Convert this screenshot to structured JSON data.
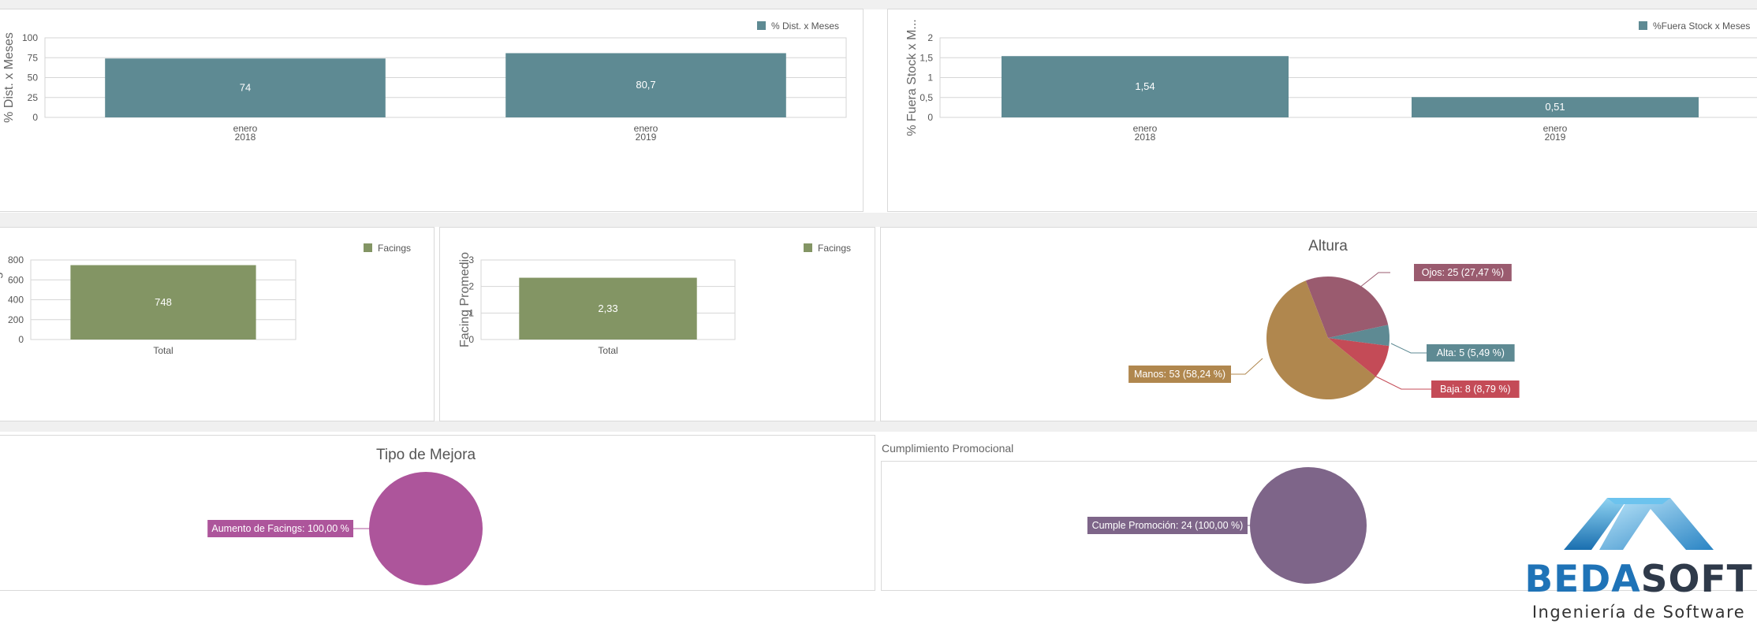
{
  "colors": {
    "teal": "#5e8a93",
    "green": "#839564",
    "pie_ojos": "#9a5b6f",
    "pie_alta": "#5e8a93",
    "pie_baja": "#c44b57",
    "pie_manos": "#b0874e",
    "pie_mejora": "#ad559b",
    "pie_promo": "#7e6589"
  },
  "chart_data": [
    {
      "id": "dist",
      "type": "bar",
      "categories": [
        [
          "enero",
          "2018"
        ],
        [
          "enero",
          "2019"
        ]
      ],
      "series": [
        {
          "name": "% Dist. x Meses",
          "values": [
            74,
            80.7
          ]
        }
      ],
      "value_labels": [
        "74",
        "80,7"
      ],
      "ylabel": "% Dist. x Meses",
      "ylim": [
        0,
        100
      ],
      "yticks": [
        0,
        25,
        50,
        75,
        100
      ],
      "ytick_labels": [
        "0",
        "25",
        "50",
        "75",
        "100"
      ],
      "grid": true,
      "legend": "top-right"
    },
    {
      "id": "stock",
      "type": "bar",
      "categories": [
        [
          "enero",
          "2018"
        ],
        [
          "enero",
          "2019"
        ]
      ],
      "series": [
        {
          "name": "%Fuera Stock x Meses",
          "values": [
            1.54,
            0.51
          ]
        }
      ],
      "value_labels": [
        "1,54",
        "0,51"
      ],
      "ylabel": "% Fuera Stock x M...",
      "ylim": [
        0,
        2
      ],
      "yticks": [
        0,
        0.5,
        1,
        1.5,
        2
      ],
      "ytick_labels": [
        "0",
        "0,5",
        "1",
        "1,5",
        "2"
      ],
      "grid": true,
      "legend": "top-right"
    },
    {
      "id": "facing",
      "type": "bar",
      "categories": [
        [
          "Total"
        ]
      ],
      "series": [
        {
          "name": "Facings",
          "values": [
            748
          ]
        }
      ],
      "value_labels": [
        "748"
      ],
      "ylabel": "N° Facing",
      "ylim": [
        0,
        800
      ],
      "yticks": [
        0,
        200,
        400,
        600,
        800
      ],
      "ytick_labels": [
        "0",
        "200",
        "400",
        "600",
        "800"
      ],
      "grid": true,
      "legend": "top-right"
    },
    {
      "id": "facing-prom",
      "type": "bar",
      "categories": [
        [
          "Total"
        ]
      ],
      "series": [
        {
          "name": "Facings",
          "values": [
            2.33
          ]
        }
      ],
      "value_labels": [
        "2,33"
      ],
      "ylabel": "Facing Promedio",
      "ylim": [
        0,
        3
      ],
      "yticks": [
        0,
        1,
        2,
        3
      ],
      "ytick_labels": [
        "0",
        "1",
        "2",
        "3"
      ],
      "grid": true,
      "legend": "top-right"
    },
    {
      "id": "altura",
      "type": "pie",
      "title": "Altura",
      "slices": [
        {
          "label": "Ojos: 25 (27,47 %)",
          "value": 25,
          "percent": 27.47,
          "color_key": "pie_ojos"
        },
        {
          "label": "Alta: 5 (5,49 %)",
          "value": 5,
          "percent": 5.49,
          "color_key": "pie_alta"
        },
        {
          "label": "Baja: 8 (8,79 %)",
          "value": 8,
          "percent": 8.79,
          "color_key": "pie_baja"
        },
        {
          "label": "Manos: 53 (58,24 %)",
          "value": 53,
          "percent": 58.24,
          "color_key": "pie_manos"
        }
      ]
    },
    {
      "id": "mejora",
      "type": "pie",
      "title": "Tipo de Mejora",
      "slices": [
        {
          "label": "Aumento de Facings: 100,00 %",
          "value": 100,
          "percent": 100,
          "color_key": "pie_mejora"
        }
      ]
    },
    {
      "id": "promo",
      "type": "pie",
      "title": "",
      "slices": [
        {
          "label": "Cumple Promoción: 24 (100,00 %)",
          "value": 24,
          "percent": 100,
          "color_key": "pie_promo"
        }
      ]
    }
  ],
  "sections": {
    "promo_caption": "Cumplimiento Promocional"
  },
  "logo": {
    "word_part1": "BEDA",
    "word_part2": "SOFT",
    "tagline": "Ingeniería de Software"
  }
}
